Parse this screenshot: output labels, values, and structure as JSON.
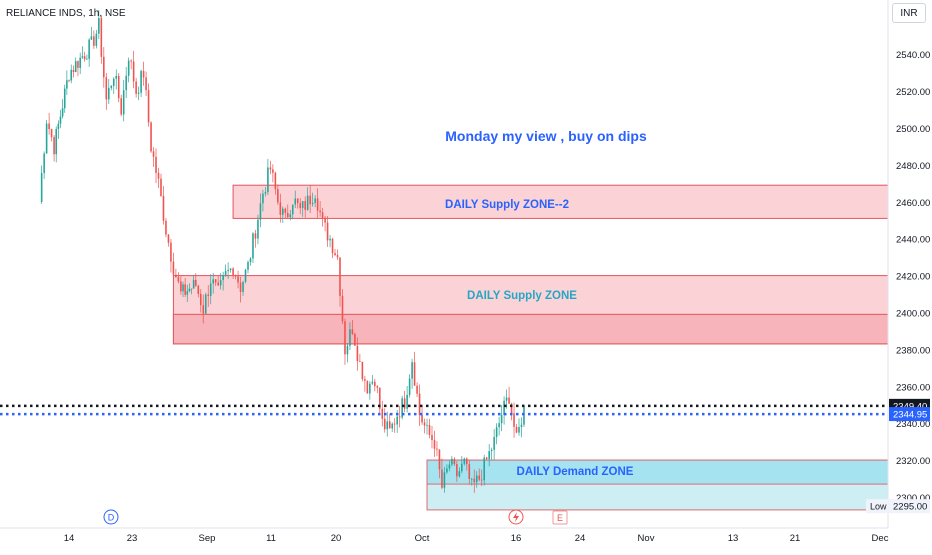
{
  "header": {
    "symbol": "RELIANCE INDS",
    "interval": "1h",
    "exchange": "NSE",
    "currency": "INR"
  },
  "annotations": {
    "view": "Monday  my view , buy on dips",
    "supply2": "DAILY Supply  ZONE--2",
    "supply1": "DAILY Supply  ZONE",
    "demand": "DAILY Demand  ZONE"
  },
  "markers": {
    "dividend": "D",
    "earnings": "E"
  },
  "colors": {
    "up": "#26a69a",
    "down": "#ef5350",
    "supply_fill": "#fbd3d6",
    "supply_core_fill": "#f7b4ba",
    "supply_border": "#e3545c",
    "demand_fill": "#cdeff4",
    "demand_core_fill": "#a4e3ef",
    "demand_border": "#e06a70",
    "annotation_blue": "#2962ff",
    "annotation_teal": "#26a6c6",
    "last_price_bg": "#131722",
    "prev_line": "#2962ff"
  },
  "chart_data": {
    "type": "candlestick",
    "title": "RELIANCE INDS, 1h, NSE",
    "y_axis": {
      "ticks": [
        2300,
        2320,
        2340,
        2360,
        2380,
        2400,
        2420,
        2440,
        2460,
        2480,
        2500,
        2520,
        2540
      ],
      "range": [
        2289,
        2555
      ],
      "unit": "INR",
      "position": "right"
    },
    "x_axis": {
      "ticks": [
        "14",
        "23",
        "Sep",
        "11",
        "20",
        "Oct",
        "16",
        "24",
        "Nov",
        "13",
        "21",
        "Dec"
      ]
    },
    "last_price": 2349.4,
    "reference_price": 2344.95,
    "low_label": "Low",
    "low_price": 2295.0,
    "zones": [
      {
        "label": "DAILY Supply  ZONE--2",
        "from_date": "Sep 05",
        "to_date": "open",
        "low": 2451,
        "high": 2469
      },
      {
        "label": "DAILY Supply  ZONE",
        "from_date": "Aug 28",
        "to_date": "open",
        "low": 2383,
        "high": 2420
      },
      {
        "label": "",
        "from_date": "Aug 28",
        "to_date": "open",
        "low": 2383,
        "high": 2399
      },
      {
        "label": "DAILY Demand  ZONE",
        "from_date": "Oct 01",
        "to_date": "open",
        "low": 2293,
        "high": 2320
      },
      {
        "label": "",
        "from_date": "Oct 01",
        "to_date": "open",
        "low": 2307,
        "high": 2320
      }
    ],
    "trend_points": [
      [
        "Aug 10",
        2460
      ],
      [
        "Aug 11",
        2505
      ],
      [
        "Aug 12",
        2490
      ],
      [
        "Aug 14",
        2530
      ],
      [
        "Aug 17",
        2545
      ],
      [
        "Aug 18",
        2555
      ],
      [
        "Aug 19",
        2515
      ],
      [
        "Aug 20",
        2530
      ],
      [
        "Aug 21",
        2510
      ],
      [
        "Aug 22",
        2540
      ],
      [
        "Aug 23",
        2520
      ],
      [
        "Aug 24",
        2530
      ],
      [
        "Aug 25",
        2490
      ],
      [
        "Aug 26",
        2470
      ],
      [
        "Aug 27",
        2445
      ],
      [
        "Aug 28",
        2425
      ],
      [
        "Aug 29",
        2410
      ],
      [
        "Aug 31",
        2415
      ],
      [
        "Sep 01",
        2402
      ],
      [
        "Sep 02",
        2418
      ],
      [
        "Sep 03",
        2410
      ],
      [
        "Sep 04",
        2420
      ],
      [
        "Sep 05",
        2425
      ],
      [
        "Sep 06",
        2414
      ],
      [
        "Sep 07",
        2425
      ],
      [
        "Sep 08",
        2445
      ],
      [
        "Sep 09",
        2465
      ],
      [
        "Sep 10",
        2478
      ],
      [
        "Sep 11",
        2460
      ],
      [
        "Sep 12",
        2450
      ],
      [
        "Sep 13",
        2462
      ],
      [
        "Sep 14",
        2455
      ],
      [
        "Sep 15",
        2460
      ],
      [
        "Sep 16",
        2466
      ],
      [
        "Sep 17",
        2448
      ],
      [
        "Sep 18",
        2440
      ],
      [
        "Sep 19",
        2430
      ],
      [
        "Sep 20",
        2380
      ],
      [
        "Sep 21",
        2392
      ],
      [
        "Sep 22",
        2372
      ],
      [
        "Sep 23",
        2360
      ],
      [
        "Sep 24",
        2365
      ],
      [
        "Sep 25",
        2340
      ],
      [
        "Sep 26",
        2335
      ],
      [
        "Sep 27",
        2345
      ],
      [
        "Sep 28",
        2352
      ],
      [
        "Sep 29",
        2375
      ],
      [
        "Sep 30",
        2345
      ],
      [
        "Oct 01",
        2335
      ],
      [
        "Oct 02",
        2330
      ],
      [
        "Oct 03",
        2305
      ],
      [
        "Oct 04",
        2318
      ],
      [
        "Oct 05",
        2312
      ],
      [
        "Oct 06",
        2318
      ],
      [
        "Oct 07",
        2305
      ],
      [
        "Oct 08",
        2310
      ],
      [
        "Oct 09",
        2320
      ],
      [
        "Oct 10",
        2330
      ],
      [
        "Oct 11",
        2345
      ],
      [
        "Oct 12",
        2355
      ],
      [
        "Oct 13",
        2330
      ],
      [
        "Oct 14",
        2349
      ]
    ]
  }
}
